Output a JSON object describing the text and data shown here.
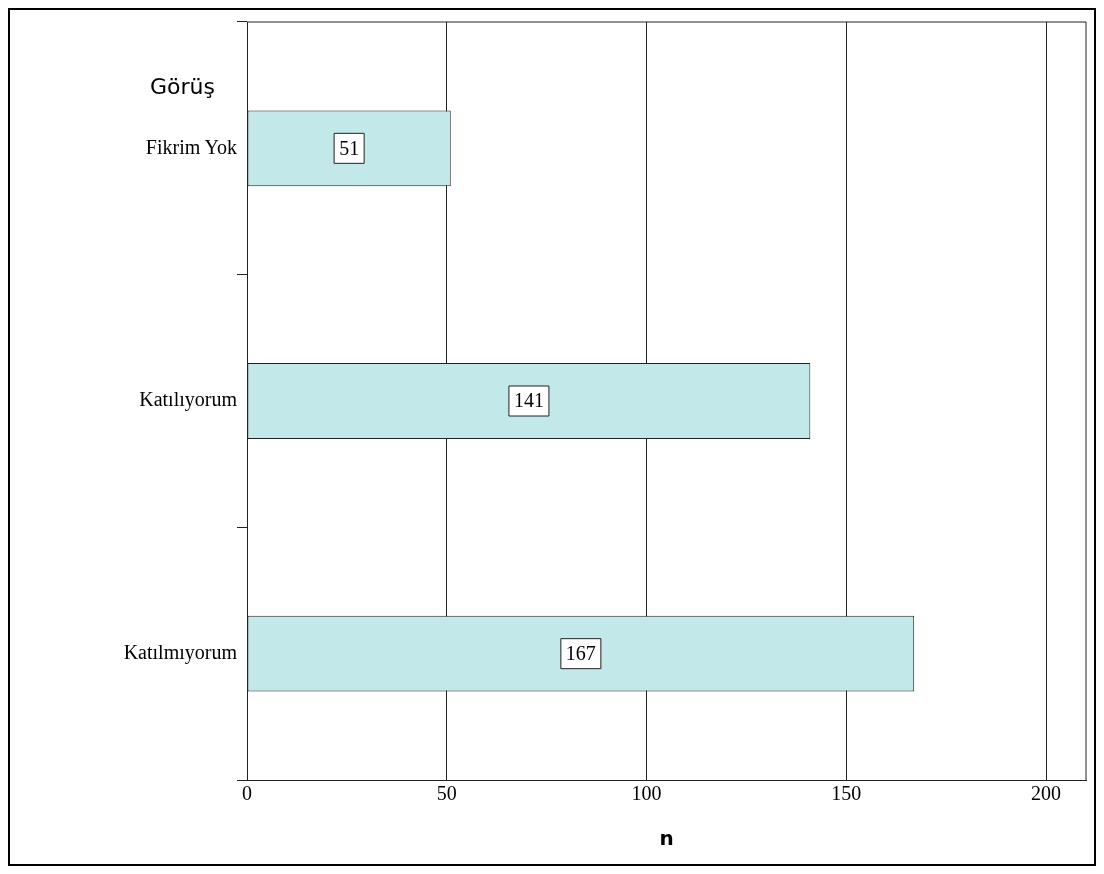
{
  "chart_data": {
    "type": "bar",
    "orientation": "horizontal",
    "ylabel": "Görüş",
    "xlabel": "n",
    "categories": [
      "Fikrim Yok",
      "Katılıyorum",
      "Katılmıyorum"
    ],
    "values": [
      51,
      141,
      167
    ],
    "color": "#c2e8ea",
    "xlim": [
      0,
      210
    ],
    "xticks": [
      0,
      50,
      100,
      150,
      200
    ],
    "grid": "x",
    "data_labels": true
  }
}
